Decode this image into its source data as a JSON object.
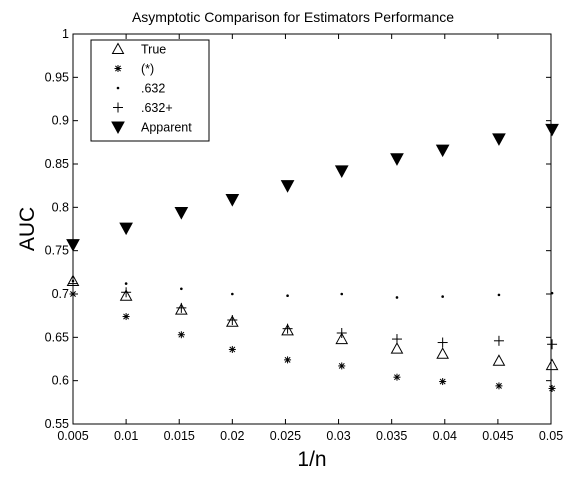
{
  "chart_data": {
    "type": "scatter",
    "title": "Asymptotic Comparison for Estimators Performance",
    "xlabel": "1/n",
    "ylabel": "AUC",
    "xlim": [
      0.005,
      0.05
    ],
    "ylim": [
      0.55,
      1.0
    ],
    "x_ticks": [
      "0.005",
      "0.01",
      "0.015",
      "0.02",
      "0.025",
      "0.03",
      "0.035",
      "0.04",
      "0.045",
      "0.05"
    ],
    "y_ticks": [
      "0.55",
      "0.6",
      "0.65",
      "0.7",
      "0.75",
      "0.8",
      "0.85",
      "0.9",
      "0.95",
      "1"
    ],
    "grid": false,
    "legend_position": "top-left",
    "x": [
      0.005,
      0.01,
      0.0152,
      0.02,
      0.0252,
      0.0303,
      0.0355,
      0.0398,
      0.0451,
      0.0501
    ],
    "series": [
      {
        "name": "True",
        "marker": "triangle-open",
        "values": [
          0.715,
          0.698,
          0.682,
          0.668,
          0.658,
          0.648,
          0.637,
          0.631,
          0.623,
          0.618
        ]
      },
      {
        "name": "(*)",
        "marker": "asterisk",
        "values": [
          0.7,
          0.674,
          0.653,
          0.636,
          0.624,
          0.617,
          0.604,
          0.599,
          0.594,
          0.591
        ]
      },
      {
        "name": ".632",
        "marker": "dot",
        "values": [
          0.715,
          0.712,
          0.706,
          0.7,
          0.698,
          0.7,
          0.696,
          0.697,
          0.699,
          0.701
        ]
      },
      {
        "name": ".632+",
        "marker": "plus",
        "values": [
          0.712,
          0.702,
          0.684,
          0.67,
          0.66,
          0.655,
          0.648,
          0.644,
          0.646,
          0.642
        ]
      },
      {
        "name": "Apparent",
        "marker": "triangle-filled",
        "values": [
          0.757,
          0.776,
          0.794,
          0.809,
          0.825,
          0.842,
          0.856,
          0.866,
          0.879,
          0.89
        ]
      }
    ],
    "colors": {
      "marker": "#000000",
      "axes": "#000000",
      "background": "#ffffff"
    }
  }
}
